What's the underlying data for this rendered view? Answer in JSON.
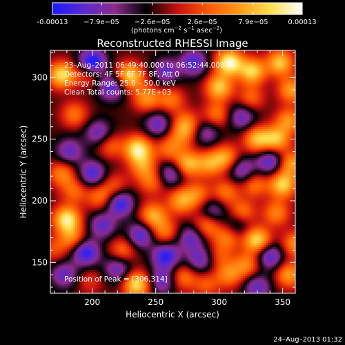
{
  "colorbar": {
    "ticks": [
      "-0.00013",
      "−7.9e−05",
      "−2.6e−05",
      "2.6e−05",
      "7.9e−05",
      "0.00013"
    ],
    "tick_values": [
      -0.00013,
      -7.9e-05,
      -2.6e-05,
      2.6e-05,
      7.9e-05,
      0.00013
    ],
    "range": [
      -0.00013,
      0.00013
    ],
    "unit_label": {
      "base": "(photons cm",
      "exp1": "−2",
      "mid1": " s",
      "exp2": "−1",
      "mid2": " asec",
      "exp3": "−2",
      "close": ")"
    },
    "colors": [
      "#1a1aff",
      "#5a2ad0",
      "#8c2a8c",
      "#000000",
      "#c81010",
      "#ff5a00",
      "#ff9a1a",
      "#ffe050",
      "#ffffff"
    ]
  },
  "chart_data": {
    "type": "heatmap",
    "title": "Reconstructed RHESSI Image",
    "xlabel": "Heliocentric X (arcsec)",
    "ylabel": "Heliocentric Y (arcsec)",
    "xlim": [
      167,
      360
    ],
    "ylim": [
      125,
      322
    ],
    "xticks": [
      200,
      250,
      300,
      350
    ],
    "yticks": [
      150,
      200,
      250,
      300
    ],
    "xtick_labels": [
      "200",
      "250",
      "300",
      "350"
    ],
    "ytick_labels": [
      "150",
      "200",
      "250",
      "300"
    ],
    "annotations": [
      "23–Aug–2011 06:49:40.000 to 06:52:44.000",
      "Detectors: 4F 5F 6F 7F 8F, Att 0",
      "Energy Range: 25.0 – 50.0 keV",
      "Clean    Total counts: 5.77E+03"
    ],
    "peak_label": "Position of Peak = [306,314]",
    "peak": [
      306,
      314
    ],
    "sources": [
      {
        "x": 176,
        "y": 302,
        "v": 0.85
      },
      {
        "x": 186,
        "y": 270,
        "v": 0.45
      },
      {
        "x": 197,
        "y": 303,
        "v": 0.4
      },
      {
        "x": 228,
        "y": 302,
        "v": 0.5
      },
      {
        "x": 232,
        "y": 300,
        "v": 0.35
      },
      {
        "x": 243,
        "y": 283,
        "v": 0.55
      },
      {
        "x": 262,
        "y": 282,
        "v": 0.45
      },
      {
        "x": 274,
        "y": 262,
        "v": 0.55
      },
      {
        "x": 300,
        "y": 292,
        "v": 0.75
      },
      {
        "x": 308,
        "y": 312,
        "v": 1.0
      },
      {
        "x": 326,
        "y": 305,
        "v": 0.8
      },
      {
        "x": 348,
        "y": 312,
        "v": 0.75
      },
      {
        "x": 357,
        "y": 290,
        "v": 0.6
      },
      {
        "x": 355,
        "y": 265,
        "v": 0.55
      },
      {
        "x": 345,
        "y": 250,
        "v": 0.7
      },
      {
        "x": 330,
        "y": 250,
        "v": 0.7
      },
      {
        "x": 325,
        "y": 283,
        "v": 0.4
      },
      {
        "x": 298,
        "y": 270,
        "v": 0.45
      },
      {
        "x": 236,
        "y": 242,
        "v": 0.9
      },
      {
        "x": 240,
        "y": 228,
        "v": 0.5
      },
      {
        "x": 260,
        "y": 242,
        "v": 0.4
      },
      {
        "x": 214,
        "y": 245,
        "v": 0.4
      },
      {
        "x": 275,
        "y": 230,
        "v": 0.7
      },
      {
        "x": 270,
        "y": 252,
        "v": 0.35
      },
      {
        "x": 292,
        "y": 230,
        "v": 0.55
      },
      {
        "x": 305,
        "y": 235,
        "v": 0.6
      },
      {
        "x": 357,
        "y": 230,
        "v": 0.6
      },
      {
        "x": 350,
        "y": 213,
        "v": 0.8
      },
      {
        "x": 328,
        "y": 213,
        "v": 0.45
      },
      {
        "x": 305,
        "y": 207,
        "v": 0.45
      },
      {
        "x": 283,
        "y": 205,
        "v": 0.45
      },
      {
        "x": 270,
        "y": 200,
        "v": 0.6
      },
      {
        "x": 247,
        "y": 215,
        "v": 0.4
      },
      {
        "x": 176,
        "y": 222,
        "v": 0.5
      },
      {
        "x": 186,
        "y": 208,
        "v": 0.4
      },
      {
        "x": 180,
        "y": 185,
        "v": 0.9
      },
      {
        "x": 184,
        "y": 170,
        "v": 0.5
      },
      {
        "x": 206,
        "y": 203,
        "v": 0.45
      },
      {
        "x": 218,
        "y": 212,
        "v": 0.35
      },
      {
        "x": 248,
        "y": 188,
        "v": 0.65
      },
      {
        "x": 257,
        "y": 175,
        "v": 0.45
      },
      {
        "x": 290,
        "y": 180,
        "v": 0.5
      },
      {
        "x": 306,
        "y": 170,
        "v": 0.45
      },
      {
        "x": 330,
        "y": 168,
        "v": 0.85
      },
      {
        "x": 318,
        "y": 190,
        "v": 0.55
      },
      {
        "x": 345,
        "y": 190,
        "v": 0.5
      },
      {
        "x": 360,
        "y": 165,
        "v": 0.55
      },
      {
        "x": 355,
        "y": 140,
        "v": 0.6
      },
      {
        "x": 322,
        "y": 148,
        "v": 0.5
      },
      {
        "x": 308,
        "y": 140,
        "v": 0.5
      },
      {
        "x": 300,
        "y": 155,
        "v": 0.3
      },
      {
        "x": 272,
        "y": 138,
        "v": 0.45
      },
      {
        "x": 290,
        "y": 132,
        "v": 0.35
      },
      {
        "x": 235,
        "y": 132,
        "v": 0.85
      },
      {
        "x": 224,
        "y": 160,
        "v": 0.45
      },
      {
        "x": 170,
        "y": 160,
        "v": 0.3
      },
      {
        "x": 198,
        "y": 135,
        "v": 0.25
      },
      {
        "x": 215,
        "y": 292,
        "v": -0.6
      },
      {
        "x": 200,
        "y": 312,
        "v": -0.9
      },
      {
        "x": 258,
        "y": 305,
        "v": -0.5
      },
      {
        "x": 280,
        "y": 312,
        "v": -0.6
      },
      {
        "x": 205,
        "y": 255,
        "v": -0.5
      },
      {
        "x": 252,
        "y": 262,
        "v": -0.5
      },
      {
        "x": 290,
        "y": 255,
        "v": -0.4
      },
      {
        "x": 318,
        "y": 268,
        "v": -0.5
      },
      {
        "x": 182,
        "y": 240,
        "v": -0.5
      },
      {
        "x": 200,
        "y": 222,
        "v": -0.6
      },
      {
        "x": 222,
        "y": 198,
        "v": -0.7
      },
      {
        "x": 262,
        "y": 222,
        "v": -0.5
      },
      {
        "x": 318,
        "y": 225,
        "v": -0.5
      },
      {
        "x": 340,
        "y": 232,
        "v": -0.6
      },
      {
        "x": 295,
        "y": 192,
        "v": -0.4
      },
      {
        "x": 238,
        "y": 172,
        "v": -0.6
      },
      {
        "x": 208,
        "y": 180,
        "v": -0.5
      },
      {
        "x": 195,
        "y": 158,
        "v": -0.7
      },
      {
        "x": 220,
        "y": 145,
        "v": -0.5
      },
      {
        "x": 258,
        "y": 155,
        "v": -0.7
      },
      {
        "x": 278,
        "y": 170,
        "v": -0.5
      },
      {
        "x": 285,
        "y": 152,
        "v": -0.5
      },
      {
        "x": 340,
        "y": 155,
        "v": -0.6
      },
      {
        "x": 315,
        "y": 182,
        "v": -0.4
      },
      {
        "x": 178,
        "y": 140,
        "v": -0.5
      },
      {
        "x": 330,
        "y": 130,
        "v": -0.5
      },
      {
        "x": 255,
        "y": 135,
        "v": -0.5
      }
    ]
  },
  "footer": {
    "date": "24–Aug–2013 01:32"
  }
}
